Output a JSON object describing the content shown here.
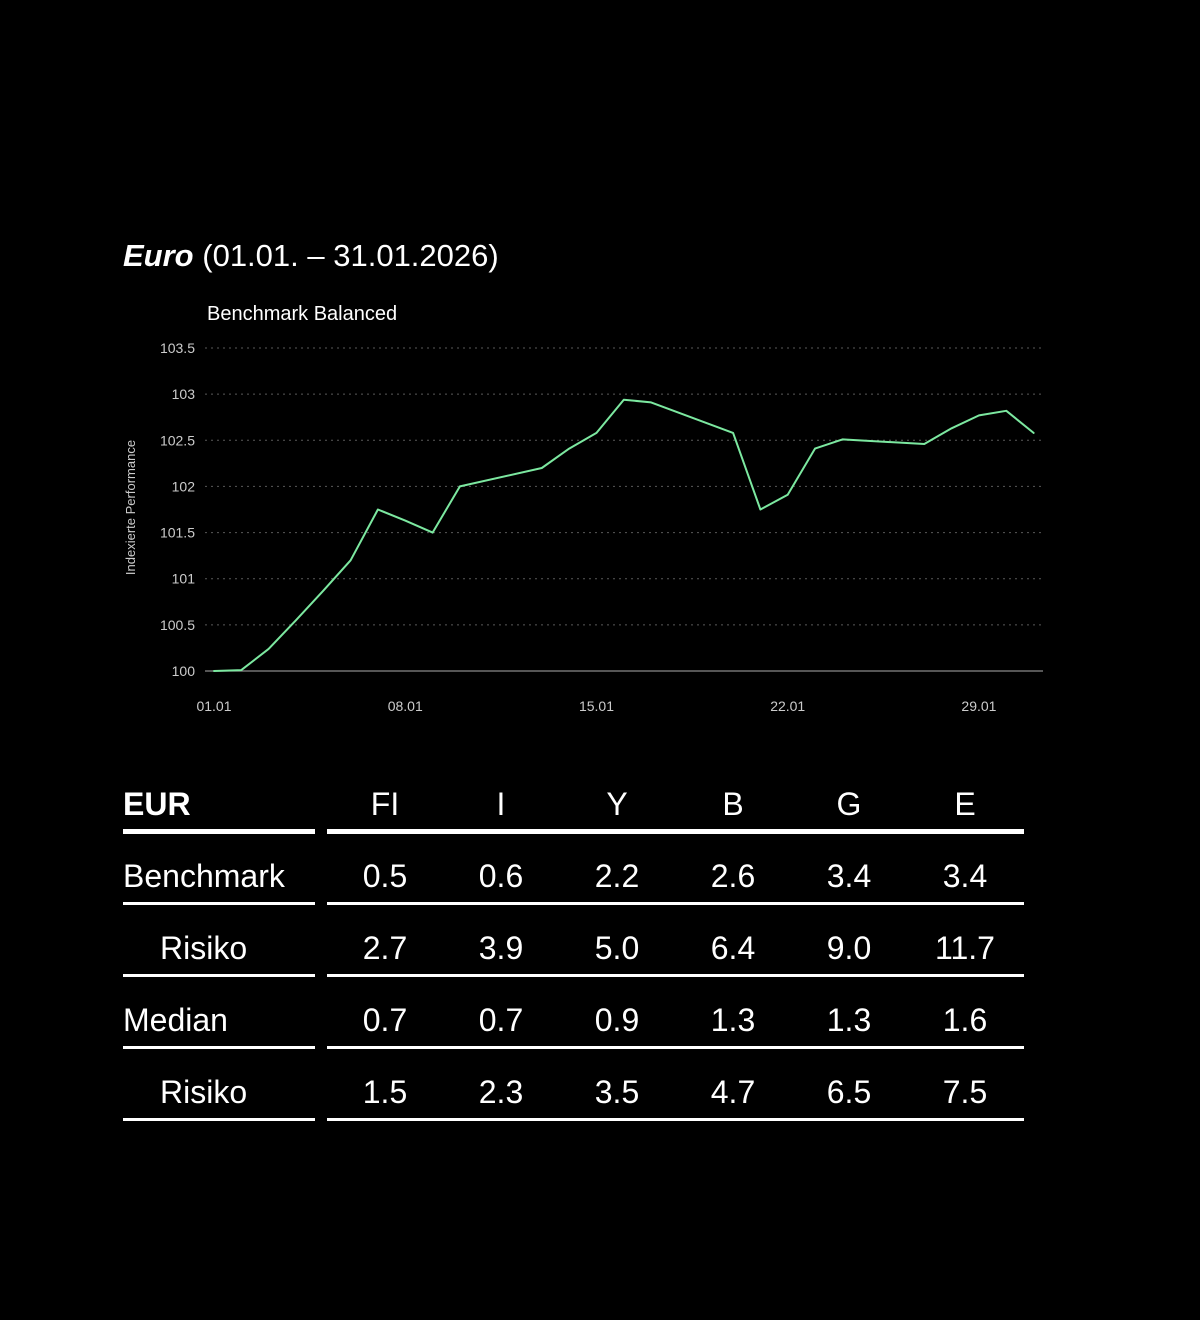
{
  "header": {
    "title_bold": "Euro",
    "title_range": "(01.01. – 31.01.2026)"
  },
  "chart_data": {
    "type": "line",
    "title": "Benchmark Balanced",
    "ylabel": "Indexierte Performance",
    "xlabel": "",
    "ylim": [
      100,
      103.5
    ],
    "yticks": [
      "100",
      "100.5",
      "101",
      "101.5",
      "102",
      "102.5",
      "103",
      "103.5"
    ],
    "xticks": [
      "01.01",
      "08.01",
      "15.01",
      "22.01",
      "29.01"
    ],
    "grid": true,
    "line_color": "#7ce8a0",
    "x": [
      1,
      2,
      3,
      4,
      5,
      6,
      7,
      8,
      9,
      10,
      13,
      14,
      15,
      16,
      17,
      20,
      21,
      22,
      23,
      24,
      27,
      28,
      29,
      30,
      31
    ],
    "values": [
      100.0,
      100.01,
      100.24,
      100.55,
      100.87,
      101.2,
      101.75,
      101.63,
      101.5,
      102.0,
      102.2,
      102.41,
      102.58,
      102.94,
      102.91,
      102.58,
      101.75,
      101.91,
      102.41,
      102.51,
      102.46,
      102.63,
      102.77,
      102.82,
      102.58
    ]
  },
  "table": {
    "corner": "EUR",
    "columns": [
      "FI",
      "I",
      "Y",
      "B",
      "G",
      "E"
    ],
    "rows": [
      {
        "label": "Benchmark",
        "indent": false,
        "values": [
          "0.5",
          "0.6",
          "2.2",
          "2.6",
          "3.4",
          "3.4"
        ]
      },
      {
        "label": "Risiko",
        "indent": true,
        "values": [
          "2.7",
          "3.9",
          "5.0",
          "6.4",
          "9.0",
          "11.7"
        ]
      },
      {
        "label": "Median",
        "indent": false,
        "values": [
          "0.7",
          "0.7",
          "0.9",
          "1.3",
          "1.3",
          "1.6"
        ]
      },
      {
        "label": "Risiko",
        "indent": true,
        "values": [
          "1.5",
          "2.3",
          "3.5",
          "4.7",
          "6.5",
          "7.5"
        ]
      }
    ]
  }
}
